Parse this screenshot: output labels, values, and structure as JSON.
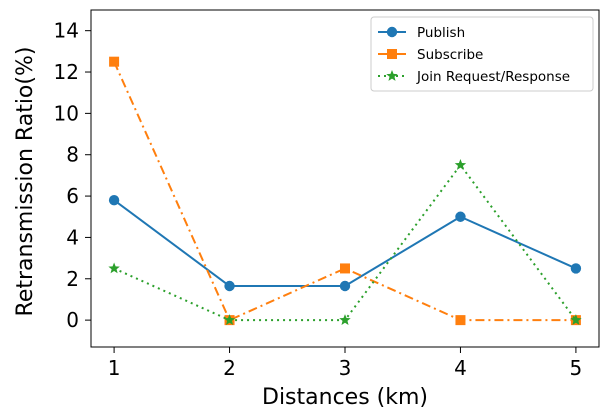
{
  "chart_data": {
    "type": "line",
    "title": "",
    "xlabel": "Distances (km)",
    "ylabel": "Retransmission Ratio(%)",
    "x": [
      1,
      2,
      3,
      4,
      5
    ],
    "x_ticks": [
      "1",
      "2",
      "3",
      "4",
      "5"
    ],
    "y_ticks": [
      "0",
      "2",
      "4",
      "6",
      "8",
      "10",
      "12",
      "14"
    ],
    "xlim": [
      0.8,
      5.2
    ],
    "ylim": [
      -1.3,
      15
    ],
    "grid": false,
    "legend_position": "top-right",
    "series": [
      {
        "name": "Publish",
        "values": [
          5.8,
          1.65,
          1.65,
          5.0,
          2.5
        ],
        "color": "#1f77b4",
        "line_style": "solid",
        "marker": "circle"
      },
      {
        "name": "Subscribe",
        "values": [
          12.5,
          0.0,
          2.5,
          0.0,
          0.0
        ],
        "color": "#ff7f0e",
        "line_style": "dashdot",
        "marker": "square"
      },
      {
        "name": "Join Request/Response",
        "values": [
          2.5,
          0.0,
          0.0,
          7.5,
          0.0
        ],
        "color": "#2ca02c",
        "line_style": "dotted",
        "marker": "star"
      }
    ]
  }
}
